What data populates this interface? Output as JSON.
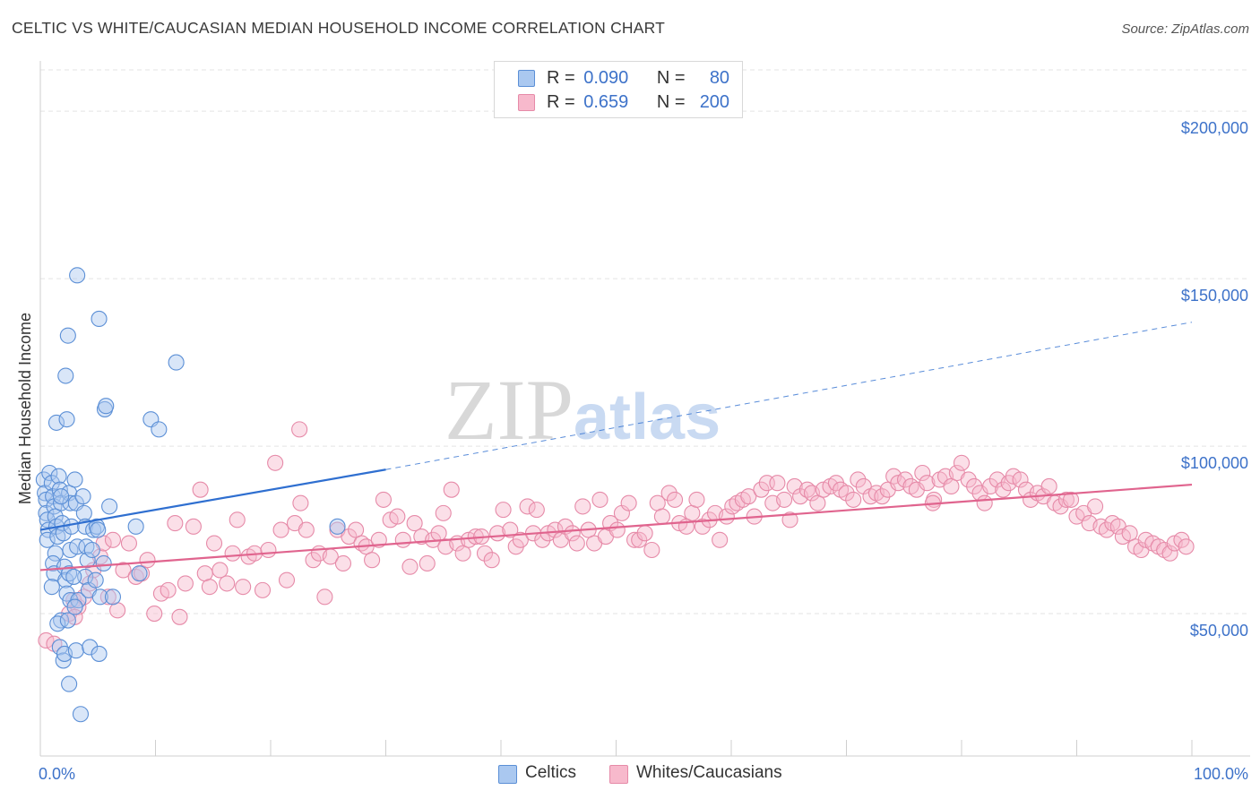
{
  "header": {
    "title": "CELTIC VS WHITE/CAUCASIAN MEDIAN HOUSEHOLD INCOME CORRELATION CHART",
    "source": "Source: ZipAtlas.com"
  },
  "watermark": {
    "zip": "ZIP",
    "atlas": "atlas"
  },
  "legend": {
    "rows": [
      {
        "r_label": "R =",
        "r_value": "0.090",
        "n_label": "N =",
        "n_value": "80",
        "color": "#aac8f0"
      },
      {
        "r_label": "R =",
        "r_value": "0.659",
        "n_label": "N =",
        "n_value": "200",
        "color": "#f7b9cc"
      }
    ]
  },
  "bottom_legend": [
    {
      "label": "Celtics",
      "color": "#aac8f0"
    },
    {
      "label": "Whites/Caucasians",
      "color": "#f7b9cc"
    }
  ],
  "colors": {
    "blue_fill": "#aac8f0",
    "blue_stroke": "#5b8fd6",
    "blue_line": "#2f6fd0",
    "pink_fill": "#f7b9cc",
    "pink_stroke": "#e68aa8",
    "pink_line": "#e0648e",
    "grid": "#e3e3e3",
    "tick_label": "#3d72c9"
  },
  "chart_data": {
    "type": "scatter",
    "title": "CELTIC VS WHITE/CAUCASIAN MEDIAN HOUSEHOLD INCOME CORRELATION CHART",
    "xlabel": "",
    "ylabel": "Median Household Income",
    "xlim": [
      0,
      100
    ],
    "ylim": [
      7500,
      215000
    ],
    "x_tick_labels": [
      "0.0%",
      "100.0%"
    ],
    "y_ticks": [
      50000,
      100000,
      150000,
      200000
    ],
    "y_tick_labels": [
      "$50,000",
      "$100,000",
      "$150,000",
      "$200,000"
    ],
    "grid": true,
    "legend_position": "top-center",
    "series": [
      {
        "name": "Celtics",
        "points": [
          [
            0.3,
            90000
          ],
          [
            0.4,
            86000
          ],
          [
            0.5,
            84000
          ],
          [
            0.5,
            80000
          ],
          [
            0.6,
            78000
          ],
          [
            0.7,
            75000
          ],
          [
            0.6,
            72000
          ],
          [
            0.8,
            92000
          ],
          [
            1.0,
            89000
          ],
          [
            1.1,
            85000
          ],
          [
            1.2,
            82000
          ],
          [
            1.3,
            79000
          ],
          [
            1.4,
            76000
          ],
          [
            1.5,
            73000
          ],
          [
            1.3,
            68000
          ],
          [
            1.1,
            65000
          ],
          [
            1.2,
            62000
          ],
          [
            1.0,
            58000
          ],
          [
            1.4,
            107000
          ],
          [
            1.6,
            91000
          ],
          [
            1.7,
            87000
          ],
          [
            1.8,
            83000
          ],
          [
            1.9,
            77000
          ],
          [
            2.0,
            74000
          ],
          [
            2.1,
            64000
          ],
          [
            2.2,
            60000
          ],
          [
            2.3,
            56000
          ],
          [
            1.8,
            48000
          ],
          [
            1.5,
            47000
          ],
          [
            1.7,
            40000
          ],
          [
            2.0,
            36000
          ],
          [
            2.1,
            38000
          ],
          [
            2.4,
            133000
          ],
          [
            2.2,
            121000
          ],
          [
            2.3,
            108000
          ],
          [
            2.5,
            86000
          ],
          [
            2.6,
            83000
          ],
          [
            2.7,
            76000
          ],
          [
            2.6,
            69000
          ],
          [
            2.5,
            62000
          ],
          [
            2.6,
            54000
          ],
          [
            2.4,
            48000
          ],
          [
            2.5,
            29000
          ],
          [
            3.2,
            151000
          ],
          [
            3.0,
            90000
          ],
          [
            3.1,
            83000
          ],
          [
            3.2,
            70000
          ],
          [
            3.3,
            54000
          ],
          [
            3.0,
            52000
          ],
          [
            3.1,
            39000
          ],
          [
            3.5,
            20000
          ],
          [
            3.7,
            85000
          ],
          [
            3.8,
            80000
          ],
          [
            3.9,
            76000
          ],
          [
            4.0,
            70000
          ],
          [
            4.1,
            66000
          ],
          [
            3.9,
            61000
          ],
          [
            4.2,
            57000
          ],
          [
            4.3,
            40000
          ],
          [
            4.6,
            75000
          ],
          [
            4.5,
            69000
          ],
          [
            4.8,
            60000
          ],
          [
            4.9,
            76000
          ],
          [
            5.1,
            138000
          ],
          [
            5.0,
            75000
          ],
          [
            5.2,
            55000
          ],
          [
            5.1,
            38000
          ],
          [
            5.6,
            111000
          ],
          [
            5.7,
            112000
          ],
          [
            5.5,
            65000
          ],
          [
            6.0,
            82000
          ],
          [
            6.3,
            55000
          ],
          [
            8.3,
            76000
          ],
          [
            8.6,
            62000
          ],
          [
            9.6,
            108000
          ],
          [
            10.3,
            105000
          ],
          [
            11.8,
            125000
          ],
          [
            1.8,
            85000
          ],
          [
            2.9,
            61000
          ],
          [
            25.8,
            76000
          ]
        ],
        "trend": {
          "x_solid": [
            0,
            30
          ],
          "y_solid": [
            75000,
            93000
          ],
          "x_dashed": [
            30,
            100
          ],
          "y_dashed": [
            93000,
            137000
          ]
        }
      },
      {
        "name": "Whites/Caucasians",
        "points": [
          [
            0.5,
            42000
          ],
          [
            1.2,
            41000
          ],
          [
            2.5,
            50000
          ],
          [
            2.9,
            54000
          ],
          [
            3.3,
            52000
          ],
          [
            3.0,
            49000
          ],
          [
            3.8,
            55000
          ],
          [
            4.3,
            59000
          ],
          [
            4.6,
            63000
          ],
          [
            5.2,
            67000
          ],
          [
            5.5,
            71000
          ],
          [
            5.9,
            55000
          ],
          [
            6.3,
            72000
          ],
          [
            6.7,
            51000
          ],
          [
            7.2,
            63000
          ],
          [
            7.7,
            71000
          ],
          [
            8.3,
            61000
          ],
          [
            8.8,
            62000
          ],
          [
            9.3,
            66000
          ],
          [
            9.9,
            50000
          ],
          [
            10.5,
            56000
          ],
          [
            11.1,
            57000
          ],
          [
            11.7,
            77000
          ],
          [
            12.1,
            49000
          ],
          [
            12.6,
            59000
          ],
          [
            13.3,
            76000
          ],
          [
            13.9,
            87000
          ],
          [
            14.3,
            62000
          ],
          [
            14.7,
            58000
          ],
          [
            15.1,
            71000
          ],
          [
            15.6,
            63000
          ],
          [
            16.2,
            59000
          ],
          [
            16.7,
            68000
          ],
          [
            17.1,
            78000
          ],
          [
            17.6,
            58000
          ],
          [
            18.1,
            67000
          ],
          [
            18.6,
            68000
          ],
          [
            19.3,
            57000
          ],
          [
            19.8,
            69000
          ],
          [
            20.4,
            95000
          ],
          [
            20.9,
            75000
          ],
          [
            21.4,
            60000
          ],
          [
            22.1,
            77000
          ],
          [
            22.6,
            83000
          ],
          [
            23.1,
            75000
          ],
          [
            23.7,
            66000
          ],
          [
            24.2,
            68000
          ],
          [
            24.7,
            55000
          ],
          [
            25.2,
            67000
          ],
          [
            25.8,
            75000
          ],
          [
            26.3,
            65000
          ],
          [
            26.8,
            73000
          ],
          [
            27.4,
            75000
          ],
          [
            27.9,
            71000
          ],
          [
            28.3,
            70000
          ],
          [
            28.8,
            66000
          ],
          [
            29.4,
            72000
          ],
          [
            29.8,
            84000
          ],
          [
            30.4,
            78000
          ],
          [
            31.0,
            79000
          ],
          [
            31.5,
            72000
          ],
          [
            32.1,
            64000
          ],
          [
            32.5,
            77000
          ],
          [
            33.1,
            73000
          ],
          [
            33.6,
            65000
          ],
          [
            34.1,
            72000
          ],
          [
            34.6,
            74000
          ],
          [
            35.2,
            70000
          ],
          [
            35.7,
            87000
          ],
          [
            36.2,
            71000
          ],
          [
            36.7,
            68000
          ],
          [
            37.2,
            72000
          ],
          [
            37.8,
            73000
          ],
          [
            38.3,
            73000
          ],
          [
            38.6,
            68000
          ],
          [
            39.2,
            66000
          ],
          [
            39.7,
            74000
          ],
          [
            40.2,
            81000
          ],
          [
            40.8,
            75000
          ],
          [
            41.3,
            70000
          ],
          [
            41.7,
            72000
          ],
          [
            42.3,
            82000
          ],
          [
            42.8,
            74000
          ],
          [
            43.1,
            81000
          ],
          [
            43.6,
            72000
          ],
          [
            44.1,
            74000
          ],
          [
            44.7,
            75000
          ],
          [
            45.2,
            72000
          ],
          [
            45.6,
            76000
          ],
          [
            46.2,
            74000
          ],
          [
            46.6,
            71000
          ],
          [
            47.1,
            82000
          ],
          [
            47.6,
            75000
          ],
          [
            48.1,
            71000
          ],
          [
            48.6,
            84000
          ],
          [
            49.1,
            73000
          ],
          [
            49.5,
            77000
          ],
          [
            50.1,
            75000
          ],
          [
            50.5,
            80000
          ],
          [
            51.1,
            83000
          ],
          [
            51.6,
            72000
          ],
          [
            52.0,
            72000
          ],
          [
            52.5,
            74000
          ],
          [
            53.1,
            69000
          ],
          [
            53.6,
            83000
          ],
          [
            54.0,
            79000
          ],
          [
            54.6,
            86000
          ],
          [
            55.1,
            84000
          ],
          [
            55.5,
            77000
          ],
          [
            56.1,
            76000
          ],
          [
            56.6,
            80000
          ],
          [
            57.0,
            84000
          ],
          [
            57.5,
            76000
          ],
          [
            58.1,
            78000
          ],
          [
            58.6,
            80000
          ],
          [
            59.0,
            72000
          ],
          [
            59.6,
            79000
          ],
          [
            60.1,
            82000
          ],
          [
            60.5,
            83000
          ],
          [
            61.0,
            84000
          ],
          [
            61.5,
            85000
          ],
          [
            62.0,
            79000
          ],
          [
            62.6,
            87000
          ],
          [
            63.1,
            89000
          ],
          [
            63.6,
            83000
          ],
          [
            64.0,
            89000
          ],
          [
            64.6,
            84000
          ],
          [
            65.1,
            78000
          ],
          [
            65.5,
            88000
          ],
          [
            66.0,
            85000
          ],
          [
            66.6,
            87000
          ],
          [
            67.0,
            86000
          ],
          [
            67.5,
            83000
          ],
          [
            68.0,
            87000
          ],
          [
            68.6,
            88000
          ],
          [
            69.1,
            89000
          ],
          [
            69.5,
            87000
          ],
          [
            70.0,
            86000
          ],
          [
            70.6,
            84000
          ],
          [
            71.0,
            90000
          ],
          [
            71.5,
            88000
          ],
          [
            72.1,
            85000
          ],
          [
            72.6,
            86000
          ],
          [
            73.1,
            85000
          ],
          [
            73.6,
            87000
          ],
          [
            74.1,
            91000
          ],
          [
            74.5,
            89000
          ],
          [
            75.1,
            90000
          ],
          [
            75.6,
            88000
          ],
          [
            76.1,
            87000
          ],
          [
            76.6,
            92000
          ],
          [
            77.0,
            89000
          ],
          [
            77.6,
            84000
          ],
          [
            78.1,
            90000
          ],
          [
            78.6,
            91000
          ],
          [
            79.1,
            88000
          ],
          [
            79.6,
            92000
          ],
          [
            80.0,
            95000
          ],
          [
            80.6,
            90000
          ],
          [
            81.1,
            88000
          ],
          [
            81.6,
            86000
          ],
          [
            82.0,
            83000
          ],
          [
            82.5,
            88000
          ],
          [
            83.1,
            90000
          ],
          [
            83.6,
            87000
          ],
          [
            84.1,
            89000
          ],
          [
            84.5,
            91000
          ],
          [
            85.1,
            90000
          ],
          [
            85.6,
            87000
          ],
          [
            86.0,
            84000
          ],
          [
            86.6,
            86000
          ],
          [
            87.1,
            85000
          ],
          [
            87.6,
            88000
          ],
          [
            88.1,
            83000
          ],
          [
            88.6,
            82000
          ],
          [
            89.1,
            84000
          ],
          [
            89.5,
            84000
          ],
          [
            90.0,
            79000
          ],
          [
            90.6,
            80000
          ],
          [
            91.1,
            77000
          ],
          [
            91.6,
            82000
          ],
          [
            92.1,
            76000
          ],
          [
            92.6,
            75000
          ],
          [
            93.1,
            77000
          ],
          [
            93.6,
            76000
          ],
          [
            94.0,
            73000
          ],
          [
            94.6,
            74000
          ],
          [
            95.1,
            70000
          ],
          [
            95.6,
            69000
          ],
          [
            96.0,
            72000
          ],
          [
            96.6,
            71000
          ],
          [
            97.1,
            70000
          ],
          [
            97.6,
            69000
          ],
          [
            98.1,
            68000
          ],
          [
            98.5,
            71000
          ],
          [
            99.1,
            72000
          ],
          [
            99.5,
            70000
          ],
          [
            22.5,
            105000
          ],
          [
            35.0,
            80000
          ],
          [
            77.5,
            83000
          ]
        ],
        "trend": {
          "x_solid": [
            0,
            100
          ],
          "y_solid": [
            63000,
            88500
          ]
        }
      }
    ]
  }
}
